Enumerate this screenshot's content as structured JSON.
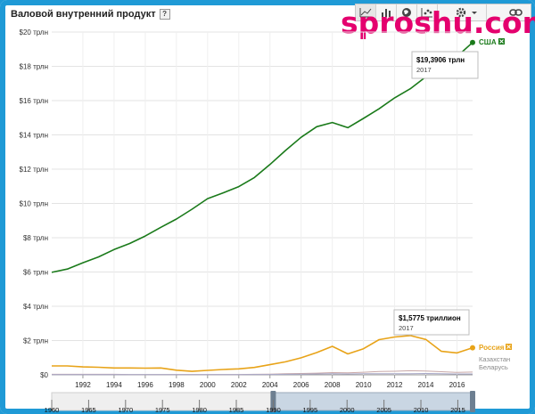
{
  "title": "Валовой внутренний продукт",
  "help_label": "?",
  "watermark": "sproshu.com",
  "toolbar": {
    "icons": [
      "line-chart-icon",
      "bar-chart-icon",
      "map-icon",
      "scatter-icon",
      "gear-icon",
      "link-icon"
    ],
    "menu_arrow": "▾"
  },
  "chart_data": {
    "type": "line",
    "x": [
      1990,
      1991,
      1992,
      1993,
      1994,
      1995,
      1996,
      1997,
      1998,
      1999,
      2000,
      2001,
      2002,
      2003,
      2004,
      2005,
      2006,
      2007,
      2008,
      2009,
      2010,
      2011,
      2012,
      2013,
      2014,
      2015,
      2016,
      2017
    ],
    "x_ticks": [
      "1992",
      "1994",
      "1996",
      "1998",
      "2000",
      "2002",
      "2004",
      "2006",
      "2008",
      "2010",
      "2012",
      "2014",
      "2016"
    ],
    "y_ticks": [
      "$0",
      "$2 трлн",
      "$4 трлн",
      "$6 трлн",
      "$8 трлн",
      "$10 трлн",
      "$12 трлн",
      "$14 трлн",
      "$16 трлн",
      "$18 трлн",
      "$20 трлн"
    ],
    "ylim": [
      0,
      20
    ],
    "series": [
      {
        "name": "США",
        "color": "#1a7a1a",
        "values": [
          5.98,
          6.17,
          6.54,
          6.88,
          7.31,
          7.66,
          8.1,
          8.61,
          9.09,
          9.66,
          10.28,
          10.62,
          10.98,
          11.51,
          12.27,
          13.09,
          13.86,
          14.48,
          14.72,
          14.42,
          14.96,
          15.52,
          16.16,
          16.69,
          17.39,
          18.04,
          18.57,
          19.39
        ]
      },
      {
        "name": "Россия",
        "color": "#e8a318",
        "values": [
          0.52,
          0.52,
          0.46,
          0.44,
          0.4,
          0.4,
          0.39,
          0.4,
          0.27,
          0.2,
          0.26,
          0.31,
          0.35,
          0.43,
          0.59,
          0.76,
          0.99,
          1.3,
          1.66,
          1.22,
          1.52,
          2.05,
          2.21,
          2.29,
          2.06,
          1.37,
          1.28,
          1.58
        ]
      },
      {
        "name": "Казахстан",
        "color": "#c9a8a8",
        "values": [
          0.03,
          0.03,
          0.03,
          0.03,
          0.03,
          0.02,
          0.02,
          0.02,
          0.02,
          0.02,
          0.02,
          0.02,
          0.02,
          0.03,
          0.04,
          0.06,
          0.08,
          0.1,
          0.13,
          0.12,
          0.15,
          0.19,
          0.21,
          0.24,
          0.22,
          0.18,
          0.14,
          0.16
        ]
      },
      {
        "name": "Беларусь",
        "color": "#a9a9c9",
        "values": [
          0.01,
          0.01,
          0.01,
          0.01,
          0.01,
          0.01,
          0.01,
          0.01,
          0.01,
          0.01,
          0.01,
          0.01,
          0.01,
          0.02,
          0.02,
          0.03,
          0.04,
          0.05,
          0.06,
          0.05,
          0.06,
          0.06,
          0.07,
          0.07,
          0.08,
          0.06,
          0.05,
          0.05
        ]
      }
    ],
    "tooltips": [
      {
        "value": "$19,3906 трлн",
        "year": "2017",
        "series": "США"
      },
      {
        "value": "$1,5775 триллион",
        "year": "2017",
        "series": "Россия"
      }
    ],
    "legend_placement": "right-end-of-lines",
    "range_slider": {
      "labels": [
        "1960",
        "1965",
        "1970",
        "1975",
        "1980",
        "1985",
        "1990",
        "1995",
        "2000",
        "2005",
        "2010",
        "2015"
      ],
      "selected_from": 1990,
      "selected_to": 2017
    }
  }
}
